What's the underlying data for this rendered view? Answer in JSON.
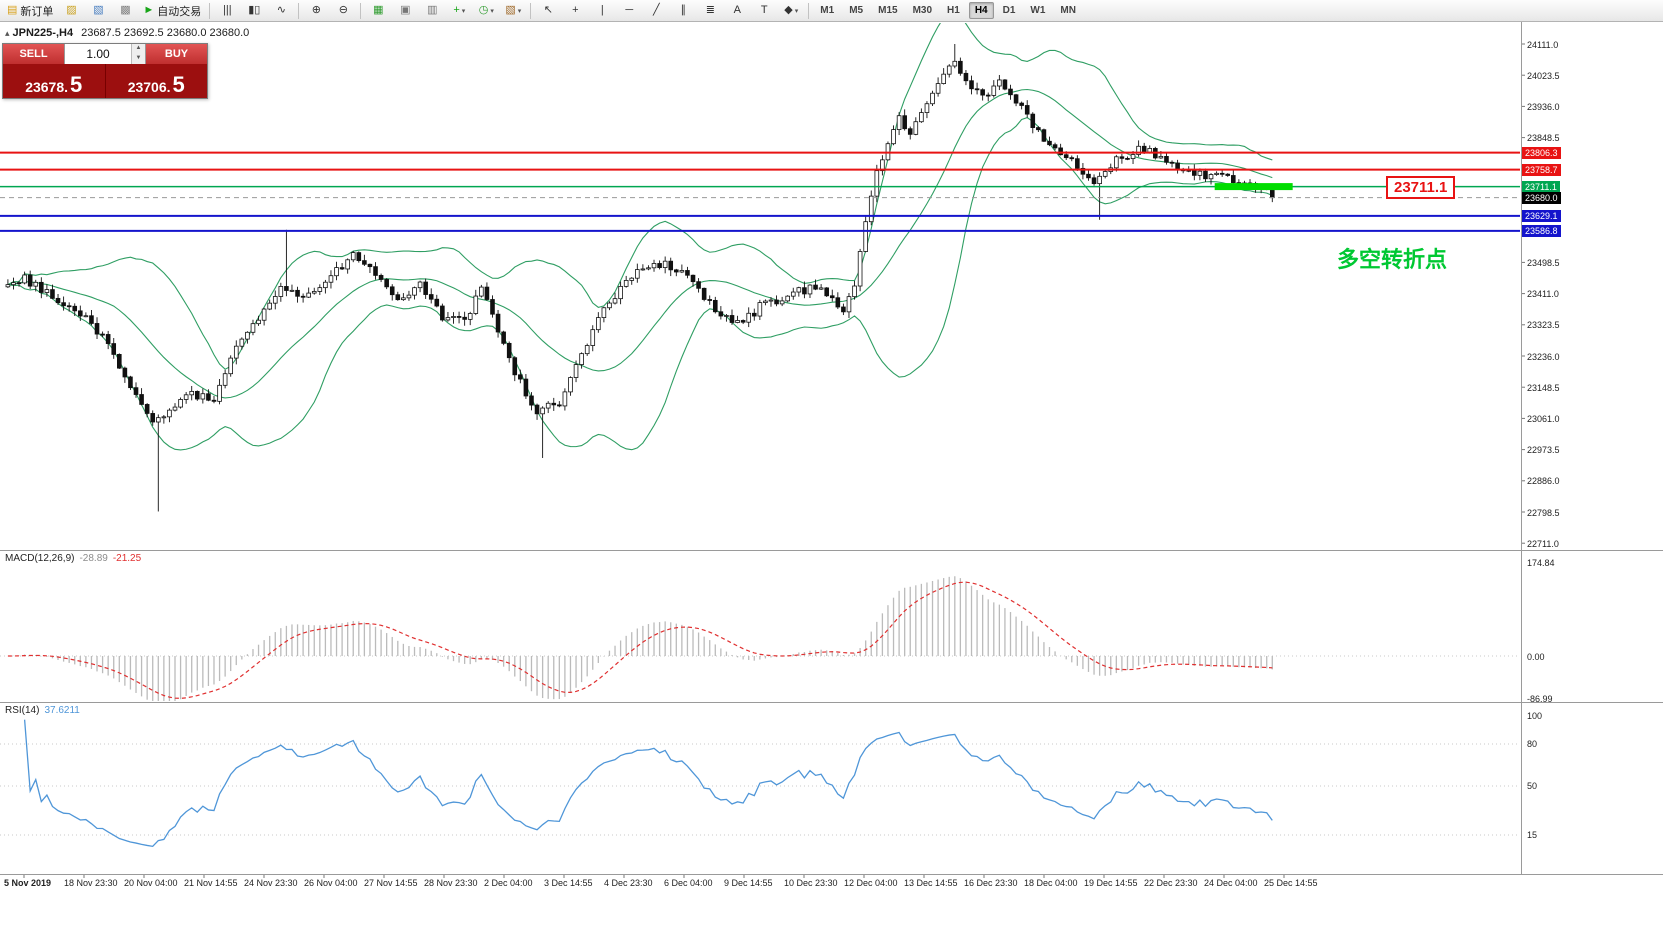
{
  "toolbar": {
    "items": [
      {
        "type": "button",
        "name": "new-order-button",
        "glyph": "▤",
        "glyph_color": "#d8a018",
        "label": "新订单"
      },
      {
        "type": "button",
        "name": "profit-chart-button",
        "glyph": "▨",
        "glyph_color": "#caa221"
      },
      {
        "type": "button",
        "name": "market-watch-button",
        "glyph": "▧",
        "glyph_color": "#4a7fc0"
      },
      {
        "type": "button",
        "name": "data-window-button",
        "glyph": "▩",
        "glyph_color": "#808080"
      },
      {
        "type": "button",
        "name": "autotrading-button",
        "glyph": "►",
        "glyph_color": "#18a518",
        "label": "自动交易"
      },
      {
        "type": "sep"
      },
      {
        "type": "button",
        "name": "chart-bars-button",
        "glyph": "|||",
        "glyph_color": "#333333"
      },
      {
        "type": "button",
        "name": "chart-candles-button",
        "glyph": "▮▯",
        "glyph_color": "#333333"
      },
      {
        "type": "button",
        "name": "chart-line-button",
        "glyph": "∿",
        "glyph_color": "#333333"
      },
      {
        "type": "sep"
      },
      {
        "type": "button",
        "name": "zoom-in-button",
        "glyph": "⊕",
        "glyph_color": "#333333"
      },
      {
        "type": "button",
        "name": "zoom-out-button",
        "glyph": "⊖",
        "glyph_color": "#333333"
      },
      {
        "type": "sep"
      },
      {
        "type": "button",
        "name": "tile-windows-button",
        "glyph": "▦",
        "glyph_color": "#2a9a2a"
      },
      {
        "type": "button",
        "name": "cascade-windows-button",
        "glyph": "▣",
        "glyph_color": "#777777"
      },
      {
        "type": "button",
        "name": "arrange-windows-button",
        "glyph": "▥",
        "glyph_color": "#777777"
      },
      {
        "type": "button",
        "name": "indicators-button",
        "glyph": "+",
        "glyph_color": "#18a518",
        "dropdown": true
      },
      {
        "type": "button",
        "name": "periods-button",
        "glyph": "◷",
        "glyph_color": "#2a9a2a",
        "dropdown": true
      },
      {
        "type": "button",
        "name": "templates-button",
        "glyph": "▧",
        "glyph_color": "#a06a2a",
        "dropdown": true
      },
      {
        "type": "sep"
      },
      {
        "type": "button",
        "name": "cursor-button",
        "glyph": "↖",
        "glyph_color": "#333333"
      },
      {
        "type": "button",
        "name": "crosshair-button",
        "glyph": "+",
        "glyph_color": "#333333"
      },
      {
        "type": "button",
        "name": "vertical-line-button",
        "glyph": "|",
        "glyph_color": "#333333"
      },
      {
        "type": "button",
        "name": "horizontal-line-button",
        "glyph": "─",
        "glyph_color": "#333333"
      },
      {
        "type": "button",
        "name": "trendline-button",
        "glyph": "╱",
        "glyph_color": "#333333"
      },
      {
        "type": "button",
        "name": "channel-button",
        "glyph": "∥",
        "glyph_color": "#333333"
      },
      {
        "type": "button",
        "name": "fibonacci-button",
        "glyph": "≣",
        "glyph_color": "#333333"
      },
      {
        "type": "button",
        "name": "text-button",
        "glyph": "A",
        "glyph_color": "#333333"
      },
      {
        "type": "button",
        "name": "text-label-button",
        "glyph": "T",
        "glyph_color": "#333333"
      },
      {
        "type": "button",
        "name": "shapes-button",
        "glyph": "◆",
        "glyph_color": "#333333",
        "dropdown": true
      },
      {
        "type": "sep"
      },
      {
        "type": "tf",
        "label": "M1",
        "active": false
      },
      {
        "type": "tf",
        "label": "M5",
        "active": false
      },
      {
        "type": "tf",
        "label": "M15",
        "active": false
      },
      {
        "type": "tf",
        "label": "M30",
        "active": false
      },
      {
        "type": "tf",
        "label": "H1",
        "active": false
      },
      {
        "type": "tf",
        "label": "H4",
        "active": true
      },
      {
        "type": "tf",
        "label": "D1",
        "active": false
      },
      {
        "type": "tf",
        "label": "W1",
        "active": false
      },
      {
        "type": "tf",
        "label": "MN",
        "active": false
      }
    ]
  },
  "symbol_bar": {
    "icon": "▴",
    "symbol_period": "JPN225-,H4",
    "quote": "23687.5 23692.5 23680.0 23680.0"
  },
  "order_panel": {
    "sell_label": "SELL",
    "buy_label": "BUY",
    "volume": "1.00",
    "sell_price_main": "23678.",
    "sell_price_pips": "5",
    "buy_price_main": "23706.",
    "buy_price_pips": "5"
  },
  "annotations": {
    "price_box": "23711.1",
    "note": "多空转折点",
    "note_color": "#00c832"
  },
  "macd_panel": {
    "title": "MACD(12,26,9)",
    "value_main": "-28.89",
    "value_signal": "-21.25",
    "axis_labels": [
      "174.84",
      "0.00",
      "-86.99"
    ]
  },
  "rsi_panel": {
    "title": "RSI(14)",
    "value": "37.6211",
    "axis_labels": [
      "100",
      "80",
      "50",
      "15"
    ]
  },
  "time_axis": {
    "labels": [
      "5 Nov 2019",
      "18 Nov 23:30",
      "20 Nov 04:00",
      "21 Nov 14:55",
      "24 Nov 23:30",
      "26 Nov 04:00",
      "27 Nov 14:55",
      "28 Nov 23:30",
      "2 Dec 04:00",
      "3 Dec 14:55",
      "4 Dec 23:30",
      "6 Dec 04:00",
      "9 Dec 14:55",
      "10 Dec 23:30",
      "12 Dec 04:00",
      "13 Dec 14:55",
      "16 Dec 23:30",
      "18 Dec 04:00",
      "19 Dec 14:55",
      "22 Dec 23:30",
      "24 Dec 04:00",
      "25 Dec 14:55"
    ]
  },
  "chart_data": {
    "type": "candlestick",
    "symbol": "JPN225-",
    "period": "H4",
    "quote": {
      "open": 23687.5,
      "high": 23692.5,
      "low": 23680.0,
      "close": 23680.0
    },
    "y_axis_labels": [
      "24111.0",
      "24023.5",
      "23936.0",
      "23848.5",
      "23761.0",
      "23673.5",
      "23586.0",
      "23498.5",
      "23411.0",
      "23323.5",
      "23236.0",
      "23148.5",
      "23061.0",
      "22973.5",
      "22886.0",
      "22798.5",
      "22711.0"
    ],
    "y_max": 24111.0,
    "y_step": 87.5,
    "candle_count": 228,
    "last_close": 23680.0,
    "price_path_anchors": [
      [
        0,
        23430
      ],
      [
        4,
        23455
      ],
      [
        10,
        23390
      ],
      [
        16,
        23330
      ],
      [
        20,
        23240
      ],
      [
        24,
        23130
      ],
      [
        27,
        23060
      ],
      [
        30,
        23075
      ],
      [
        34,
        23130
      ],
      [
        38,
        23105
      ],
      [
        42,
        23260
      ],
      [
        46,
        23340
      ],
      [
        50,
        23420
      ],
      [
        54,
        23395
      ],
      [
        58,
        23445
      ],
      [
        63,
        23520
      ],
      [
        67,
        23470
      ],
      [
        71,
        23400
      ],
      [
        75,
        23435
      ],
      [
        79,
        23350
      ],
      [
        83,
        23340
      ],
      [
        86,
        23420
      ],
      [
        89,
        23310
      ],
      [
        92,
        23190
      ],
      [
        96,
        23080
      ],
      [
        100,
        23105
      ],
      [
        104,
        23250
      ],
      [
        109,
        23390
      ],
      [
        113,
        23465
      ],
      [
        117,
        23500
      ],
      [
        121,
        23480
      ],
      [
        125,
        23420
      ],
      [
        129,
        23345
      ],
      [
        133,
        23330
      ],
      [
        137,
        23390
      ],
      [
        141,
        23400
      ],
      [
        145,
        23430
      ],
      [
        149,
        23405
      ],
      [
        151,
        23360
      ],
      [
        153,
        23440
      ],
      [
        155,
        23600
      ],
      [
        157,
        23750
      ],
      [
        159,
        23820
      ],
      [
        161,
        23900
      ],
      [
        163,
        23865
      ],
      [
        166,
        23950
      ],
      [
        169,
        24030
      ],
      [
        171,
        24055
      ],
      [
        174,
        23995
      ],
      [
        177,
        23970
      ],
      [
        179,
        24000
      ],
      [
        182,
        23955
      ],
      [
        185,
        23880
      ],
      [
        189,
        23820
      ],
      [
        193,
        23765
      ],
      [
        196,
        23730
      ],
      [
        200,
        23785
      ],
      [
        204,
        23820
      ],
      [
        207,
        23800
      ],
      [
        210,
        23765
      ],
      [
        214,
        23748
      ],
      [
        218,
        23738
      ],
      [
        221,
        23726
      ],
      [
        224,
        23710
      ],
      [
        228,
        23688
      ]
    ],
    "special_wicks": [
      {
        "index": 27,
        "low": 22800
      },
      {
        "index": 50,
        "high": 23590
      },
      {
        "index": 96,
        "low": 22950
      },
      {
        "index": 170,
        "high": 24111
      },
      {
        "index": 196,
        "low": 23618
      }
    ],
    "levels": [
      {
        "name": "resistance-line-1",
        "price": 23806.3,
        "label": "23806.3",
        "color": "#e81313",
        "thickness": 2,
        "style": "solid"
      },
      {
        "name": "resistance-line-2",
        "price": 23758.7,
        "label": "23758.7",
        "color": "#e81313",
        "thickness": 2,
        "style": "solid"
      },
      {
        "name": "pivot-line",
        "price": 23711.1,
        "label": "23711.1",
        "color": "#00a651",
        "thickness": 1.5,
        "style": "solid"
      },
      {
        "name": "current-price-line",
        "price": 23680.0,
        "label": "23680.0",
        "color": "#000000",
        "thickness": 1,
        "style": "dashed"
      },
      {
        "name": "support-line-1",
        "price": 23629.1,
        "label": "23629.1",
        "color": "#1414cc",
        "thickness": 2,
        "style": "solid"
      },
      {
        "name": "support-line-2",
        "price": 23586.8,
        "label": "23586.8",
        "color": "#1414cc",
        "thickness": 2,
        "style": "solid"
      }
    ],
    "highlight": {
      "start_index": 217,
      "end_index": 231,
      "price": 23711.1,
      "color": "#00dd00"
    },
    "indicators": {
      "bollinger": {
        "period": 20,
        "deviation": 2,
        "color": "#2f9e63"
      },
      "macd": {
        "fast": 12,
        "slow": 26,
        "signal": 9,
        "current_main": -28.89,
        "current_signal": -21.25,
        "axis_max": 174.84,
        "axis_min": -86.99,
        "hist_color": "#bbbbbb",
        "signal_color": "#e03030"
      },
      "rsi": {
        "period": 14,
        "current": 37.6211,
        "color": "#4f96d8",
        "levels": [
          80,
          50,
          15
        ]
      }
    }
  }
}
